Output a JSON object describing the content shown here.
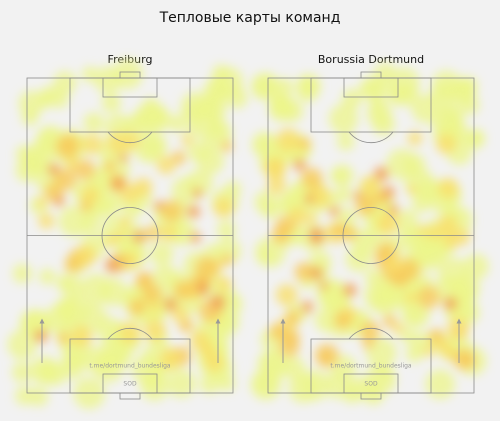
{
  "title": "Тепловые карты команд",
  "panels": [
    {
      "title": "Freiburg",
      "watermark": "t.me/dortmund_bundesliga",
      "logo_text": "SOD"
    },
    {
      "title": "Borussia Dortmund",
      "watermark": "t.me/dortmund_bundesliga",
      "logo_text": "SOD"
    }
  ]
}
